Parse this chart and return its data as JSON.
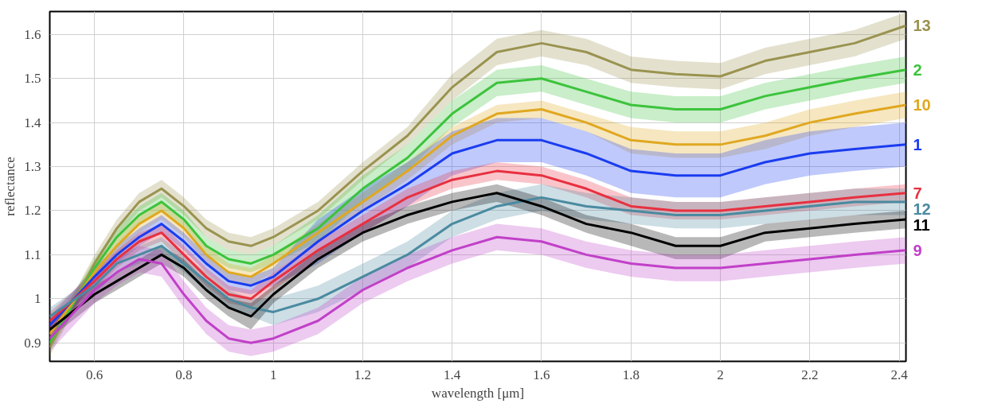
{
  "chart_data": {
    "type": "line",
    "xlabel": "wavelength [μm]",
    "ylabel": "reflectance",
    "x": [
      0.5,
      0.6,
      0.65,
      0.7,
      0.75,
      0.8,
      0.85,
      0.9,
      0.95,
      1.0,
      1.1,
      1.2,
      1.3,
      1.4,
      1.5,
      1.6,
      1.7,
      1.8,
      1.9,
      2.0,
      2.1,
      2.2,
      2.3,
      2.415
    ],
    "xlim": [
      0.5,
      2.415
    ],
    "ylim": [
      0.858,
      1.652
    ],
    "xticks": [
      0.6,
      0.8,
      1,
      1.2,
      1.4,
      1.6,
      1.8,
      2,
      2.2,
      2.4
    ],
    "yticks": [
      0.9,
      1,
      1.1,
      1.2,
      1.3,
      1.4,
      1.5,
      1.6
    ],
    "grid": true,
    "legend": false,
    "marker": "none",
    "line_style": "solid",
    "series": [
      {
        "name": "13",
        "color": "#9a9350",
        "values": [
          0.89,
          1.08,
          1.16,
          1.22,
          1.25,
          1.21,
          1.16,
          1.13,
          1.12,
          1.14,
          1.2,
          1.29,
          1.37,
          1.48,
          1.56,
          1.58,
          1.56,
          1.52,
          1.51,
          1.505,
          1.54,
          1.56,
          1.58,
          1.62
        ],
        "lower": [
          0.87,
          1.06,
          1.14,
          1.2,
          1.23,
          1.19,
          1.14,
          1.11,
          1.1,
          1.12,
          1.18,
          1.27,
          1.35,
          1.45,
          1.53,
          1.55,
          1.53,
          1.49,
          1.48,
          1.475,
          1.51,
          1.53,
          1.55,
          1.59
        ],
        "upper": [
          0.91,
          1.1,
          1.18,
          1.24,
          1.27,
          1.23,
          1.18,
          1.15,
          1.14,
          1.16,
          1.22,
          1.31,
          1.39,
          1.51,
          1.59,
          1.61,
          1.59,
          1.55,
          1.54,
          1.535,
          1.57,
          1.59,
          1.61,
          1.65
        ]
      },
      {
        "name": "2",
        "color": "#3cc33c",
        "values": [
          0.9,
          1.07,
          1.14,
          1.19,
          1.22,
          1.18,
          1.12,
          1.09,
          1.08,
          1.1,
          1.16,
          1.25,
          1.32,
          1.42,
          1.49,
          1.5,
          1.47,
          1.44,
          1.43,
          1.43,
          1.46,
          1.48,
          1.5,
          1.52
        ],
        "lower": [
          0.88,
          1.05,
          1.12,
          1.17,
          1.2,
          1.16,
          1.1,
          1.07,
          1.06,
          1.08,
          1.13,
          1.22,
          1.29,
          1.39,
          1.46,
          1.47,
          1.44,
          1.41,
          1.4,
          1.4,
          1.43,
          1.45,
          1.47,
          1.49
        ],
        "upper": [
          0.92,
          1.09,
          1.16,
          1.21,
          1.24,
          1.2,
          1.14,
          1.11,
          1.1,
          1.12,
          1.19,
          1.28,
          1.35,
          1.45,
          1.52,
          1.53,
          1.5,
          1.47,
          1.46,
          1.46,
          1.49,
          1.51,
          1.53,
          1.55
        ]
      },
      {
        "name": "10",
        "color": "#e0a820",
        "values": [
          0.92,
          1.06,
          1.12,
          1.17,
          1.2,
          1.16,
          1.1,
          1.06,
          1.05,
          1.08,
          1.15,
          1.22,
          1.29,
          1.37,
          1.42,
          1.43,
          1.4,
          1.36,
          1.35,
          1.35,
          1.37,
          1.4,
          1.42,
          1.44
        ],
        "lower": [
          0.9,
          1.04,
          1.1,
          1.15,
          1.18,
          1.14,
          1.08,
          1.04,
          1.03,
          1.06,
          1.13,
          1.2,
          1.27,
          1.35,
          1.4,
          1.41,
          1.38,
          1.33,
          1.32,
          1.32,
          1.34,
          1.37,
          1.39,
          1.41
        ],
        "upper": [
          0.94,
          1.08,
          1.14,
          1.19,
          1.22,
          1.18,
          1.12,
          1.08,
          1.07,
          1.1,
          1.17,
          1.24,
          1.31,
          1.39,
          1.44,
          1.45,
          1.42,
          1.39,
          1.38,
          1.38,
          1.4,
          1.43,
          1.45,
          1.47
        ]
      },
      {
        "name": "1",
        "color": "#1a3cf0",
        "values": [
          0.94,
          1.05,
          1.1,
          1.14,
          1.17,
          1.13,
          1.08,
          1.04,
          1.03,
          1.05,
          1.13,
          1.2,
          1.26,
          1.33,
          1.36,
          1.36,
          1.33,
          1.29,
          1.28,
          1.28,
          1.31,
          1.33,
          1.34,
          1.35
        ],
        "lower": [
          0.92,
          1.03,
          1.08,
          1.12,
          1.15,
          1.11,
          1.06,
          1.02,
          1.01,
          1.03,
          1.08,
          1.15,
          1.21,
          1.28,
          1.31,
          1.31,
          1.28,
          1.24,
          1.23,
          1.23,
          1.26,
          1.28,
          1.29,
          1.3
        ],
        "upper": [
          0.96,
          1.07,
          1.12,
          1.16,
          1.19,
          1.15,
          1.1,
          1.06,
          1.05,
          1.07,
          1.18,
          1.25,
          1.31,
          1.38,
          1.41,
          1.41,
          1.38,
          1.34,
          1.33,
          1.33,
          1.36,
          1.38,
          1.39,
          1.4
        ]
      },
      {
        "name": "7",
        "color": "#e83040",
        "values": [
          0.95,
          1.04,
          1.09,
          1.13,
          1.15,
          1.1,
          1.05,
          1.01,
          1.0,
          1.04,
          1.11,
          1.17,
          1.23,
          1.27,
          1.29,
          1.28,
          1.25,
          1.21,
          1.2,
          1.2,
          1.21,
          1.22,
          1.23,
          1.24
        ],
        "lower": [
          0.93,
          1.02,
          1.07,
          1.11,
          1.13,
          1.08,
          1.03,
          0.99,
          0.98,
          1.02,
          1.09,
          1.15,
          1.21,
          1.25,
          1.27,
          1.26,
          1.23,
          1.19,
          1.18,
          1.18,
          1.19,
          1.2,
          1.21,
          1.22
        ],
        "upper": [
          0.97,
          1.06,
          1.11,
          1.15,
          1.17,
          1.12,
          1.07,
          1.03,
          1.02,
          1.06,
          1.13,
          1.19,
          1.25,
          1.29,
          1.31,
          1.3,
          1.27,
          1.23,
          1.22,
          1.22,
          1.23,
          1.24,
          1.25,
          1.26
        ]
      },
      {
        "name": "12",
        "color": "#4a8aa0",
        "values": [
          0.96,
          1.03,
          1.08,
          1.1,
          1.12,
          1.08,
          1.04,
          1.0,
          0.98,
          0.97,
          1.0,
          1.05,
          1.1,
          1.17,
          1.21,
          1.23,
          1.21,
          1.2,
          1.19,
          1.19,
          1.2,
          1.21,
          1.22,
          1.22
        ],
        "lower": [
          0.94,
          1.01,
          1.06,
          1.08,
          1.1,
          1.06,
          1.02,
          0.98,
          0.96,
          0.94,
          0.97,
          1.02,
          1.07,
          1.14,
          1.18,
          1.2,
          1.18,
          1.17,
          1.16,
          1.16,
          1.17,
          1.18,
          1.19,
          1.19
        ],
        "upper": [
          0.98,
          1.05,
          1.1,
          1.12,
          1.14,
          1.1,
          1.06,
          1.02,
          1.0,
          1.0,
          1.03,
          1.08,
          1.13,
          1.2,
          1.24,
          1.26,
          1.24,
          1.23,
          1.22,
          1.22,
          1.23,
          1.24,
          1.25,
          1.25
        ]
      },
      {
        "name": "11",
        "color": "#000000",
        "values": [
          0.93,
          1.01,
          1.04,
          1.07,
          1.1,
          1.07,
          1.02,
          0.98,
          0.96,
          1.01,
          1.09,
          1.15,
          1.19,
          1.22,
          1.24,
          1.21,
          1.17,
          1.15,
          1.12,
          1.12,
          1.15,
          1.16,
          1.17,
          1.18
        ],
        "lower": [
          0.91,
          0.99,
          1.02,
          1.05,
          1.08,
          1.05,
          1.0,
          0.96,
          0.93,
          0.99,
          1.07,
          1.13,
          1.17,
          1.2,
          1.22,
          1.19,
          1.15,
          1.12,
          1.09,
          1.09,
          1.13,
          1.14,
          1.15,
          1.16
        ],
        "upper": [
          0.95,
          1.03,
          1.06,
          1.09,
          1.12,
          1.09,
          1.04,
          1.0,
          0.99,
          1.03,
          1.11,
          1.17,
          1.21,
          1.24,
          1.26,
          1.23,
          1.19,
          1.17,
          1.14,
          1.14,
          1.17,
          1.18,
          1.19,
          1.2
        ]
      },
      {
        "name": "9",
        "color": "#c040c8",
        "values": [
          0.91,
          1.02,
          1.06,
          1.09,
          1.08,
          1.01,
          0.95,
          0.91,
          0.9,
          0.91,
          0.95,
          1.02,
          1.07,
          1.11,
          1.14,
          1.13,
          1.1,
          1.08,
          1.07,
          1.07,
          1.08,
          1.09,
          1.1,
          1.11
        ],
        "lower": [
          0.88,
          0.99,
          1.03,
          1.06,
          1.05,
          0.98,
          0.92,
          0.88,
          0.87,
          0.88,
          0.92,
          0.99,
          1.04,
          1.08,
          1.11,
          1.1,
          1.07,
          1.05,
          1.04,
          1.04,
          1.05,
          1.06,
          1.07,
          1.08
        ],
        "upper": [
          0.94,
          1.05,
          1.09,
          1.12,
          1.11,
          1.04,
          0.98,
          0.94,
          0.93,
          0.94,
          0.98,
          1.05,
          1.1,
          1.14,
          1.17,
          1.16,
          1.13,
          1.11,
          1.1,
          1.1,
          1.11,
          1.12,
          1.13,
          1.14
        ]
      }
    ]
  }
}
